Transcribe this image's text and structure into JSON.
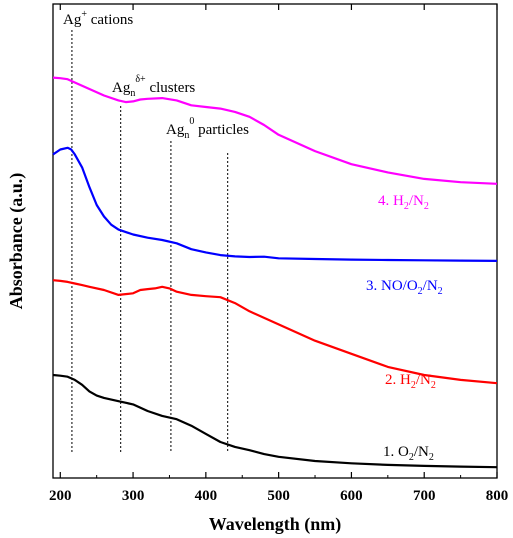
{
  "chart_data": {
    "type": "line",
    "xlabel": "Wavelength (nm)",
    "ylabel": "Absorbance (a.u.)",
    "xlim": [
      190,
      800
    ],
    "x_ticks": [
      200,
      300,
      400,
      500,
      600,
      700,
      800
    ],
    "y_ticks": [],
    "grid": false,
    "series": [
      {
        "name": "1. O2/N2",
        "color": "#000000",
        "x": [
          190,
          200,
          210,
          220,
          230,
          240,
          250,
          260,
          280,
          300,
          320,
          340,
          360,
          380,
          400,
          420,
          440,
          460,
          480,
          500,
          550,
          600,
          650,
          700,
          750,
          800
        ],
        "y": [
          0.315,
          0.313,
          0.31,
          0.3,
          0.285,
          0.265,
          0.252,
          0.245,
          0.235,
          0.225,
          0.205,
          0.19,
          0.18,
          0.16,
          0.135,
          0.11,
          0.095,
          0.085,
          0.073,
          0.065,
          0.052,
          0.045,
          0.04,
          0.037,
          0.035,
          0.033
        ]
      },
      {
        "name": "2. H2/N2",
        "color": "#ff0000",
        "x": [
          190,
          200,
          210,
          220,
          230,
          240,
          260,
          280,
          300,
          310,
          320,
          330,
          340,
          350,
          360,
          380,
          400,
          420,
          440,
          460,
          500,
          550,
          600,
          650,
          700,
          750,
          800
        ],
        "y": [
          0.605,
          0.603,
          0.6,
          0.595,
          0.59,
          0.585,
          0.575,
          0.56,
          0.565,
          0.575,
          0.578,
          0.58,
          0.585,
          0.58,
          0.57,
          0.56,
          0.556,
          0.553,
          0.535,
          0.51,
          0.47,
          0.42,
          0.38,
          0.34,
          0.315,
          0.3,
          0.29
        ]
      },
      {
        "name": "3. NO/O2/N2",
        "color": "#0000ff",
        "x": [
          190,
          200,
          210,
          215,
          220,
          230,
          240,
          250,
          260,
          270,
          280,
          300,
          320,
          340,
          360,
          380,
          400,
          420,
          440,
          460,
          480,
          500,
          550,
          600,
          650,
          700,
          750,
          800
        ],
        "y": [
          0.99,
          1.005,
          1.01,
          1.005,
          0.99,
          0.95,
          0.89,
          0.835,
          0.8,
          0.775,
          0.76,
          0.745,
          0.735,
          0.728,
          0.718,
          0.7,
          0.69,
          0.682,
          0.678,
          0.676,
          0.677,
          0.672,
          0.67,
          0.668,
          0.667,
          0.666,
          0.665,
          0.664
        ]
      },
      {
        "name": "4. H2/N2",
        "color": "#ff00ff",
        "x": [
          190,
          200,
          210,
          220,
          240,
          260,
          280,
          290,
          300,
          310,
          320,
          340,
          360,
          380,
          400,
          420,
          440,
          460,
          480,
          500,
          550,
          600,
          650,
          700,
          750,
          800
        ],
        "y": [
          1.225,
          1.223,
          1.22,
          1.21,
          1.19,
          1.17,
          1.155,
          1.15,
          1.152,
          1.158,
          1.16,
          1.162,
          1.155,
          1.14,
          1.135,
          1.13,
          1.12,
          1.105,
          1.08,
          1.05,
          1.0,
          0.96,
          0.935,
          0.915,
          0.905,
          0.9
        ]
      }
    ],
    "series_labels": [
      {
        "id": "s1",
        "prefix": "1. O",
        "sub1": "2",
        "mid": "/N",
        "sub2": "2",
        "mid2": "",
        "sub3": "",
        "color": "#000000"
      },
      {
        "id": "s2",
        "prefix": "2. H",
        "sub1": "2",
        "mid": "/N",
        "sub2": "2",
        "mid2": "",
        "sub3": "",
        "color": "#ff0000"
      },
      {
        "id": "s3",
        "prefix": "3. NO/O",
        "sub1": "2",
        "mid": "/N",
        "sub2": "2",
        "mid2": "",
        "sub3": "",
        "color": "#0000ff"
      },
      {
        "id": "s4",
        "prefix": "4. H",
        "sub1": "2",
        "mid": "/N",
        "sub2": "2",
        "mid2": "",
        "sub3": "",
        "color": "#ff00ff"
      }
    ],
    "annotations": [
      {
        "id": "ag-cations",
        "base": "Ag",
        "sub": "",
        "sup": "+",
        "rest": " cations",
        "x": 216
      },
      {
        "id": "ag-clusters",
        "base": "Ag",
        "sub": "n",
        "sup": "δ+",
        "rest": " clusters",
        "x": 283
      },
      {
        "id": "ag-particles",
        "base": "Ag",
        "sub": "n",
        "sup": "0",
        "rest": " particles",
        "x": 352
      },
      {
        "id": "ag-extra",
        "base": "",
        "sub": "",
        "sup": "",
        "rest": "",
        "x": 430
      }
    ]
  }
}
